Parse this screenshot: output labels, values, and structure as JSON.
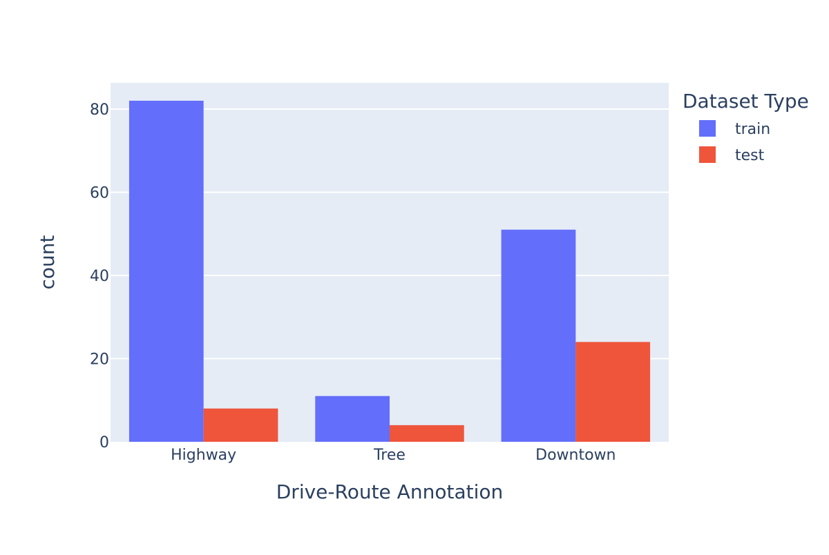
{
  "chart_data": {
    "type": "bar",
    "barmode": "group",
    "categories": [
      "Highway",
      "Tree",
      "Downtown"
    ],
    "series": [
      {
        "name": "train",
        "values": [
          82,
          11,
          51
        ],
        "color": "#636efa"
      },
      {
        "name": "test",
        "values": [
          8,
          4,
          24
        ],
        "color": "#ef553b"
      }
    ],
    "xlabel": "Drive-Route Annotation",
    "ylabel": "count",
    "ylim": [
      0,
      86.3
    ],
    "yticks": [
      0,
      20,
      40,
      60,
      80
    ],
    "ytick_labels": [
      "0",
      "20",
      "40",
      "60",
      "80"
    ],
    "grid": true,
    "legend": {
      "title": "Dataset Type",
      "placement": "top-right"
    },
    "colors": {
      "plot_background": "#e5ecf6",
      "gridline": "#ffffff",
      "text": "#2a3f5f"
    }
  }
}
